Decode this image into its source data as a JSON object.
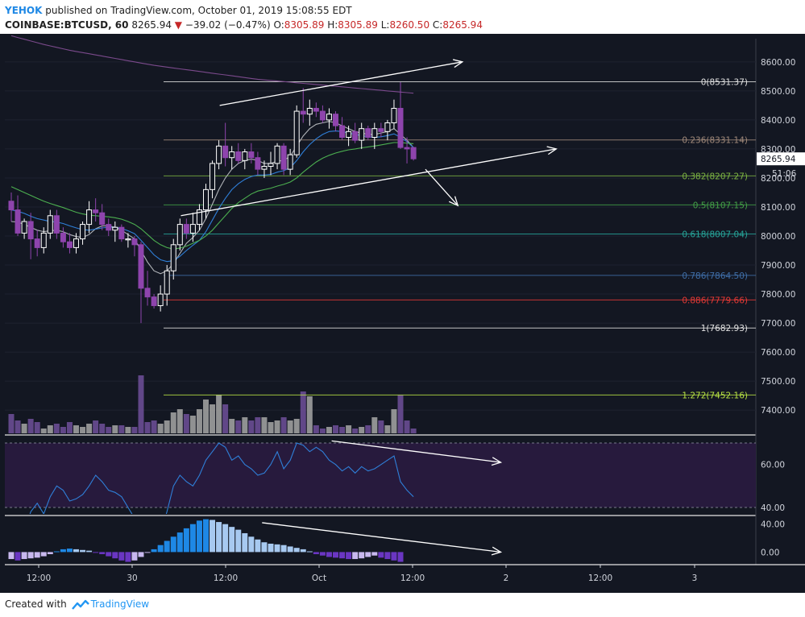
{
  "header": {
    "author": "YEHOK",
    "published_text": "published on TradingView.com, October 01, 2019 15:08:55 EDT",
    "symbol": "COINBASE:BTCUSD, 60",
    "last": "8265.94",
    "change_arrow": "▼",
    "change": "−39.02 (−0.47%)",
    "o_label": "O:",
    "o_value": "8305.89",
    "h_label": "H:",
    "h_value": "8305.89",
    "l_label": "L:",
    "l_value": "8260.50",
    "c_label": "C:",
    "c_value": "8265.94"
  },
  "footer": {
    "created_with": "Created with",
    "brand": "TradingView"
  },
  "colors": {
    "background": "#131722",
    "up_candle": "#ffffff",
    "down_candle": "#8e44ad",
    "volume_up": "#9e9e9e",
    "volume_down": "#6a4c93",
    "ma_fast": "#b0b3b8",
    "ma_mid": "#2f7fd8",
    "ma_slow": "#4caf50",
    "ma_long": "#7b4a8c",
    "rsi_line": "#2f7fd8",
    "rsi_band": "#271a3d",
    "macd_up_strong": "#1e88e5",
    "macd_up_weak": "#a7c9f0",
    "macd_down_strong": "#6a36c2",
    "macd_down_weak": "#c8b8ee",
    "trend_arrows": "#ffffff"
  },
  "chart_data": {
    "type": "candlestick",
    "price_axis": {
      "range": [
        7320,
        8680
      ],
      "ticks": [
        "8600.00",
        "8500.00",
        "8400.00",
        "8300.00",
        "8200.00",
        "8100.00",
        "8000.00",
        "7900.00",
        "7800.00",
        "7700.00",
        "7600.00",
        "7500.00",
        "7400.00"
      ]
    },
    "last_price_label": "8265.94",
    "countdown_label": "51:06",
    "time_axis_labels": [
      "12:00",
      "30",
      "12:00",
      "Oct",
      "12:00",
      "2",
      "12:00",
      "3"
    ],
    "candles": [
      [
        8120,
        8150,
        8050,
        8090
      ],
      [
        8090,
        8140,
        8000,
        8010
      ],
      [
        8010,
        8060,
        7990,
        8050
      ],
      [
        8050,
        8080,
        7920,
        7990
      ],
      [
        7990,
        8020,
        7930,
        7960
      ],
      [
        7960,
        8030,
        7940,
        8010
      ],
      [
        8010,
        8090,
        7990,
        8070
      ],
      [
        8070,
        8090,
        7990,
        8010
      ],
      [
        8010,
        8030,
        7960,
        7980
      ],
      [
        7980,
        8010,
        7940,
        7960
      ],
      [
        7960,
        8010,
        7940,
        7990
      ],
      [
        7990,
        8050,
        7970,
        8040
      ],
      [
        8040,
        8120,
        8010,
        8090
      ],
      [
        8090,
        8130,
        8050,
        8080
      ],
      [
        8080,
        8110,
        8020,
        8040
      ],
      [
        8040,
        8060,
        8000,
        8020
      ],
      [
        8020,
        8050,
        7980,
        8030
      ],
      [
        8030,
        8040,
        7980,
        7990
      ],
      [
        7990,
        8010,
        7960,
        7990
      ],
      [
        7990,
        8000,
        7930,
        7970
      ],
      [
        7970,
        7980,
        7700,
        7820
      ],
      [
        7820,
        7880,
        7760,
        7790
      ],
      [
        7790,
        7800,
        7750,
        7760
      ],
      [
        7760,
        7830,
        7740,
        7800
      ],
      [
        7800,
        7900,
        7760,
        7880
      ],
      [
        7880,
        7990,
        7850,
        7970
      ],
      [
        7970,
        8060,
        7950,
        8040
      ],
      [
        8040,
        8060,
        7990,
        8010
      ],
      [
        8010,
        8080,
        7980,
        8040
      ],
      [
        8040,
        8110,
        8020,
        8090
      ],
      [
        8090,
        8180,
        8060,
        8160
      ],
      [
        8160,
        8260,
        8130,
        8250
      ],
      [
        8250,
        8330,
        8230,
        8310
      ],
      [
        8310,
        8390,
        8240,
        8270
      ],
      [
        8270,
        8310,
        8230,
        8290
      ],
      [
        8290,
        8320,
        8250,
        8260
      ],
      [
        8260,
        8300,
        8230,
        8290
      ],
      [
        8290,
        8320,
        8250,
        8270
      ],
      [
        8270,
        8290,
        8210,
        8230
      ],
      [
        8230,
        8260,
        8200,
        8240
      ],
      [
        8240,
        8290,
        8210,
        8250
      ],
      [
        8250,
        8320,
        8230,
        8310
      ],
      [
        8310,
        8320,
        8210,
        8230
      ],
      [
        8230,
        8300,
        8210,
        8280
      ],
      [
        8280,
        8450,
        8270,
        8430
      ],
      [
        8430,
        8510,
        8390,
        8420
      ],
      [
        8420,
        8470,
        8380,
        8440
      ],
      [
        8440,
        8460,
        8410,
        8430
      ],
      [
        8430,
        8450,
        8390,
        8400
      ],
      [
        8400,
        8440,
        8370,
        8420
      ],
      [
        8420,
        8430,
        8360,
        8380
      ],
      [
        8380,
        8410,
        8330,
        8340
      ],
      [
        8340,
        8380,
        8310,
        8360
      ],
      [
        8360,
        8390,
        8320,
        8330
      ],
      [
        8330,
        8390,
        8300,
        8370
      ],
      [
        8370,
        8380,
        8330,
        8340
      ],
      [
        8340,
        8390,
        8300,
        8370
      ],
      [
        8370,
        8390,
        8340,
        8360
      ],
      [
        8360,
        8400,
        8330,
        8390
      ],
      [
        8390,
        8470,
        8370,
        8440
      ],
      [
        8440,
        8530,
        8300,
        8305
      ],
      [
        8305,
        8340,
        8250,
        8300
      ],
      [
        8305,
        8306,
        8260,
        8266
      ]
    ],
    "volume_axis_max": 8,
    "volume": [
      1.2,
      0.8,
      0.6,
      0.9,
      0.7,
      0.3,
      0.5,
      0.6,
      0.4,
      0.7,
      0.5,
      0.4,
      0.6,
      0.8,
      0.6,
      0.4,
      0.5,
      0.5,
      0.4,
      0.4,
      3.6,
      0.7,
      0.8,
      0.6,
      0.8,
      1.3,
      1.5,
      1.2,
      1.1,
      1.5,
      2.1,
      1.8,
      2.4,
      1.8,
      0.9,
      0.8,
      1.0,
      0.8,
      1.0,
      1.0,
      0.7,
      0.8,
      1.0,
      0.8,
      0.9,
      2.6,
      2.3,
      0.5,
      0.3,
      0.4,
      0.5,
      0.4,
      0.5,
      0.3,
      0.4,
      0.5,
      1.0,
      0.8,
      0.5,
      1.5,
      2.4,
      0.8,
      0.3
    ],
    "moving_averages": [
      {
        "color": "#b0b3b8",
        "values": [
          8050,
          8048,
          8040,
          8030,
          8020,
          8015,
          8018,
          8020,
          8015,
          8005,
          7998,
          7995,
          8005,
          8025,
          8035,
          8035,
          8030,
          8020,
          8005,
          7990,
          7950,
          7910,
          7880,
          7870,
          7880,
          7905,
          7940,
          7975,
          7995,
          8020,
          8060,
          8110,
          8160,
          8200,
          8230,
          8250,
          8260,
          8265,
          8260,
          8250,
          8250,
          8258,
          8260,
          8275,
          8310,
          8345,
          8370,
          8385,
          8390,
          8395,
          8390,
          8380,
          8370,
          8360,
          8355,
          8350,
          8350,
          8355,
          8360,
          8370,
          8350,
          8330,
          8305
        ]
      },
      {
        "color": "#2f7fd8",
        "values": [
          8090,
          8085,
          8078,
          8068,
          8060,
          8055,
          8050,
          8048,
          8043,
          8035,
          8028,
          8022,
          8020,
          8024,
          8028,
          8030,
          8030,
          8026,
          8018,
          8008,
          7985,
          7960,
          7935,
          7918,
          7912,
          7915,
          7930,
          7950,
          7968,
          7985,
          8015,
          8055,
          8095,
          8130,
          8160,
          8180,
          8195,
          8205,
          8210,
          8210,
          8212,
          8220,
          8225,
          8235,
          8260,
          8290,
          8315,
          8335,
          8350,
          8360,
          8362,
          8360,
          8355,
          8350,
          8346,
          8342,
          8340,
          8342,
          8346,
          8352,
          8340,
          8325,
          8305
        ]
      },
      {
        "color": "#4caf50",
        "values": [
          8170,
          8160,
          8150,
          8140,
          8130,
          8120,
          8112,
          8105,
          8098,
          8090,
          8082,
          8076,
          8072,
          8070,
          8068,
          8066,
          8063,
          8058,
          8050,
          8040,
          8025,
          8005,
          7985,
          7970,
          7960,
          7955,
          7958,
          7965,
          7975,
          7985,
          8000,
          8020,
          8045,
          8070,
          8095,
          8115,
          8130,
          8145,
          8155,
          8160,
          8165,
          8172,
          8178,
          8186,
          8200,
          8220,
          8238,
          8255,
          8268,
          8278,
          8286,
          8292,
          8297,
          8300,
          8304,
          8307,
          8310,
          8314,
          8318,
          8322,
          8322,
          8320,
          8318
        ]
      },
      {
        "color": "#7b4a8c",
        "values": [
          8690,
          8684,
          8678,
          8672,
          8666,
          8660,
          8655,
          8650,
          8645,
          8640,
          8636,
          8632,
          8628,
          8624,
          8620,
          8616,
          8612,
          8608,
          8604,
          8600,
          8596,
          8592,
          8588,
          8585,
          8582,
          8579,
          8576,
          8573,
          8570,
          8567,
          8564,
          8561,
          8558,
          8555,
          8552,
          8549,
          8546,
          8543,
          8540,
          8538,
          8536,
          8534,
          8532,
          8530,
          8528,
          8526,
          8524,
          8522,
          8520,
          8518,
          8516,
          8514,
          8512,
          8510,
          8508,
          8506,
          8504,
          8502,
          8500,
          8498,
          8496,
          8494,
          8492
        ]
      }
    ],
    "fibonacci": [
      {
        "label": "0(8531.37)",
        "value": 8531.37,
        "color": "#e0e0e0"
      },
      {
        "label": "0.236(8331.14)",
        "value": 8331.14,
        "color": "#a0897a"
      },
      {
        "label": "0.382(8207.27)",
        "value": 8207.27,
        "color": "#7cb342"
      },
      {
        "label": "0.5(8107.15)",
        "value": 8107.15,
        "color": "#43a047"
      },
      {
        "label": "0.618(8007.04)",
        "value": 8007.04,
        "color": "#26a69a"
      },
      {
        "label": "0.786(7864.50)",
        "value": 7864.5,
        "color": "#3f6ea8"
      },
      {
        "label": "0.886(7779.66)",
        "value": 7779.66,
        "color": "#e53935"
      },
      {
        "label": "1(7682.93)",
        "value": 7682.93,
        "color": "#e0e0e0"
      },
      {
        "label": "1.272(7452.16)",
        "value": 7452.16,
        "color": "#b6e043"
      }
    ],
    "rsi": {
      "range": [
        37,
        73
      ],
      "ticks": [
        "60.00",
        "40.00"
      ],
      "band": [
        40,
        70
      ],
      "values": [
        32,
        30,
        29,
        38,
        42,
        37,
        45,
        50,
        48,
        43,
        44,
        46,
        50,
        55,
        52,
        48,
        47,
        45,
        40,
        35,
        12,
        18,
        20,
        28,
        38,
        50,
        55,
        52,
        50,
        55,
        62,
        66,
        70,
        68,
        62,
        64,
        60,
        58,
        55,
        56,
        60,
        66,
        58,
        62,
        70,
        69,
        66,
        68,
        66,
        62,
        60,
        57,
        59,
        56,
        59,
        57,
        58,
        60,
        62,
        64,
        52,
        48,
        45
      ]
    },
    "macd": {
      "range": [
        -18,
        50
      ],
      "ticks": [
        "40.00",
        "0.00"
      ],
      "values": [
        -10,
        -12,
        -10,
        -9,
        -8,
        -6,
        -3,
        1,
        4,
        5,
        4,
        3,
        2,
        -1,
        -3,
        -6,
        -9,
        -12,
        -14,
        -12,
        -7,
        -1,
        4,
        10,
        16,
        22,
        28,
        34,
        40,
        45,
        47,
        46,
        43,
        40,
        36,
        32,
        27,
        22,
        18,
        14,
        12,
        11,
        10,
        8,
        6,
        4,
        1,
        -3,
        -5,
        -7,
        -8,
        -9,
        -10,
        -10,
        -9,
        -7,
        -5,
        -8,
        -10,
        -12,
        -14
      ]
    },
    "trend_arrows": [
      {
        "from": [
          13,
          8450
        ],
        "to": [
          36,
          8600
        ]
      },
      {
        "from": [
          10,
          8070
        ],
        "to": [
          46,
          8300
        ]
      },
      {
        "from": [
          39,
          8230
        ],
        "to": [
          44,
          8105
        ]
      },
      {
        "from": [
          32,
          71
        ],
        "to": [
          50,
          61
        ]
      },
      {
        "from": [
          25,
          42
        ],
        "to": [
          50,
          0
        ]
      }
    ]
  }
}
